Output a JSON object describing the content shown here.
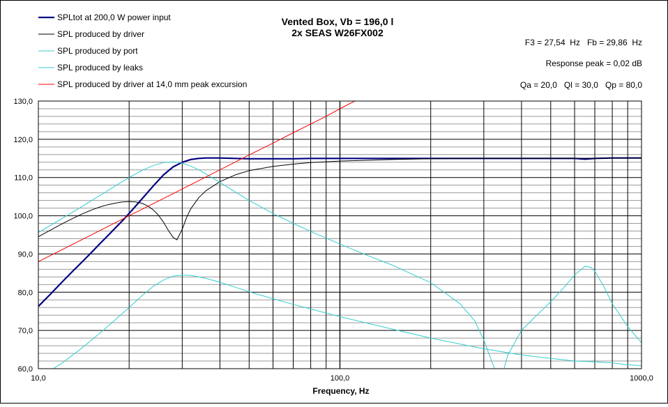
{
  "chart_data": {
    "type": "line",
    "title": "Vented Box, Vb = 196,0 l",
    "subtitle": "2x SEAS W26FX002",
    "xlabel": "Frequency, Hz",
    "ylabel": "",
    "xscale": "log",
    "xlim": [
      10,
      1000
    ],
    "ylim": [
      60,
      130
    ],
    "x_tick_labels": [
      {
        "value": 10,
        "label": "10,0"
      },
      {
        "value": 100,
        "label": "100,0"
      },
      {
        "value": 1000,
        "label": "1000,0"
      }
    ],
    "y_tick_labels": [
      {
        "value": 60,
        "label": "60,0"
      },
      {
        "value": 70,
        "label": "70,0"
      },
      {
        "value": 80,
        "label": "80,0"
      },
      {
        "value": 90,
        "label": "90,0"
      },
      {
        "value": 100,
        "label": "100,0"
      },
      {
        "value": 110,
        "label": "110,0"
      },
      {
        "value": 120,
        "label": "120,0"
      },
      {
        "value": 130,
        "label": "130,0"
      }
    ],
    "grid": true,
    "legend_position": "top-left",
    "annotations": [
      "F3 = 27,54  Hz   Fb = 29,86  Hz",
      "Response peak = 0,02 dB",
      "Qa = 20,0   Ql = 30,0   Qp = 80,0"
    ],
    "series": [
      {
        "name": "SPLtot at 200,0 W power input",
        "color": "#000080",
        "x": [
          10,
          11,
          12,
          13,
          14,
          15,
          16,
          17,
          18,
          19,
          20,
          22,
          24,
          26,
          28,
          30,
          32,
          34,
          36,
          40,
          45,
          50,
          60,
          70,
          80,
          100,
          150,
          200,
          300,
          400,
          500,
          600,
          650,
          700,
          800,
          1000
        ],
        "y": [
          76.3,
          79.6,
          82.7,
          85.5,
          88.0,
          90.4,
          92.7,
          94.8,
          96.8,
          98.7,
          100.6,
          104.3,
          107.7,
          110.7,
          112.8,
          114.0,
          114.7,
          115.0,
          115.1,
          115.1,
          115.0,
          114.9,
          114.9,
          114.9,
          115.0,
          115.0,
          115.0,
          115.0,
          115.0,
          115.0,
          115.0,
          115.0,
          114.8,
          115.0,
          115.1,
          115.1
        ]
      },
      {
        "name": "SPL produced by driver",
        "color": "#000000",
        "x": [
          10,
          11,
          12,
          13,
          14,
          15,
          16,
          17,
          18,
          19,
          20,
          21,
          22,
          23,
          24,
          25,
          26,
          27,
          28,
          28.8,
          30,
          31,
          32,
          34,
          36,
          40,
          45,
          50,
          60,
          70,
          80,
          100,
          150,
          200,
          300,
          500,
          1000
        ],
        "y": [
          94.5,
          96.3,
          97.9,
          99.3,
          100.5,
          101.5,
          102.3,
          102.9,
          103.3,
          103.6,
          103.7,
          103.6,
          103.3,
          102.6,
          101.6,
          100.2,
          98.3,
          96.1,
          94.3,
          93.7,
          96.5,
          99.5,
          101.8,
          104.7,
          106.6,
          108.9,
          110.7,
          111.8,
          112.9,
          113.5,
          113.9,
          114.3,
          114.7,
          114.9,
          115.0,
          115.0,
          115.1
        ]
      },
      {
        "name": "SPL produced by port",
        "color": "#33cccc",
        "x": [
          10,
          12,
          14,
          16,
          18,
          20,
          22,
          24,
          26,
          28,
          30,
          32,
          34,
          36,
          40,
          45,
          50,
          60,
          70,
          80,
          100,
          120,
          150,
          200,
          250,
          280,
          300,
          320,
          340,
          360,
          400,
          450,
          500,
          550,
          600,
          650,
          680,
          700,
          750,
          800,
          900,
          1000
        ],
        "y": [
          95.6,
          99.3,
          102.5,
          105.3,
          107.8,
          110.0,
          111.8,
          113.1,
          113.9,
          114.1,
          113.8,
          113.0,
          112.0,
          110.9,
          108.7,
          106.2,
          104.0,
          100.6,
          98.0,
          95.9,
          92.6,
          90.0,
          87.0,
          82.5,
          77.0,
          72.5,
          67.5,
          61.5,
          56.5,
          63.5,
          70.0,
          74.0,
          77.5,
          81.0,
          84.5,
          86.8,
          86.5,
          85.5,
          81.5,
          77.0,
          71.0,
          66.8
        ]
      },
      {
        "name": "SPL produced by leaks",
        "color": "#33cccc",
        "x": [
          10,
          11.2,
          12,
          14,
          16,
          18,
          20,
          22,
          24,
          26,
          28,
          30,
          32,
          34,
          36,
          40,
          45,
          50,
          60,
          70,
          80,
          100,
          150,
          200,
          300,
          400,
          500,
          600,
          700,
          800,
          900,
          1000
        ],
        "y": [
          57.5,
          60.0,
          61.5,
          65.5,
          69.3,
          72.8,
          76.0,
          79.0,
          81.5,
          83.2,
          84.2,
          84.5,
          84.4,
          84.0,
          83.6,
          82.6,
          81.3,
          80.1,
          78.3,
          76.8,
          75.6,
          73.6,
          70.3,
          68.0,
          65.2,
          63.6,
          62.7,
          62.0,
          61.8,
          61.5,
          61.0,
          60.8
        ]
      },
      {
        "name": "SPL produced by driver at 14,0 mm peak excursion",
        "color": "#ff0000",
        "x": [
          10,
          20,
          30,
          40,
          50,
          60,
          70,
          80,
          90,
          100,
          112
        ],
        "y": [
          88.0,
          100.0,
          107.0,
          112.0,
          115.9,
          119.0,
          121.7,
          124.0,
          126.0,
          128.0,
          130.0
        ]
      }
    ]
  }
}
